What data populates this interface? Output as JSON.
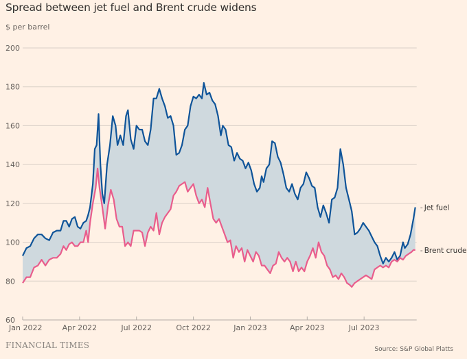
{
  "chart_data": {
    "type": "line",
    "title": "Spread between jet fuel and Brent crude widens",
    "subtitle": "$ per barrel",
    "xlabel": "",
    "ylabel": "$ per barrel",
    "ylim": [
      60,
      200
    ],
    "yticks": [
      60,
      80,
      100,
      120,
      140,
      160,
      180,
      200
    ],
    "xlim_months_from_jan2022": [
      0,
      20.7
    ],
    "xticks": [
      {
        "m": 0,
        "label": "Jan 2022"
      },
      {
        "m": 3,
        "label": "Apr 2022"
      },
      {
        "m": 6,
        "label": "Jul 2022"
      },
      {
        "m": 9,
        "label": "Oct 2022"
      },
      {
        "m": 12,
        "label": "Jan 2023"
      },
      {
        "m": 15,
        "label": "Apr 2023"
      },
      {
        "m": 18,
        "label": "Jul 2023"
      }
    ],
    "grid": true,
    "fill_between_series": true,
    "colors": {
      "jet_fuel": "#0f5499",
      "brent": "#e95d8c",
      "fill": "#cfd9de",
      "grid": "#d9cfc7",
      "axis": "#b3aca6"
    },
    "series": [
      {
        "name": "Jet fuel",
        "key": "jet_fuel",
        "points": [
          [
            0.0,
            93
          ],
          [
            0.2,
            97
          ],
          [
            0.4,
            98
          ],
          [
            0.6,
            102
          ],
          [
            0.8,
            104
          ],
          [
            1.0,
            104
          ],
          [
            1.2,
            102
          ],
          [
            1.4,
            101
          ],
          [
            1.6,
            105
          ],
          [
            1.8,
            106
          ],
          [
            2.0,
            106
          ],
          [
            2.15,
            111
          ],
          [
            2.3,
            111
          ],
          [
            2.45,
            108
          ],
          [
            2.6,
            112
          ],
          [
            2.75,
            113
          ],
          [
            2.9,
            108
          ],
          [
            3.05,
            107
          ],
          [
            3.2,
            110
          ],
          [
            3.35,
            111
          ],
          [
            3.45,
            114
          ],
          [
            3.55,
            118
          ],
          [
            3.7,
            130
          ],
          [
            3.8,
            148
          ],
          [
            3.9,
            150
          ],
          [
            4.0,
            166
          ],
          [
            4.1,
            140
          ],
          [
            4.2,
            125
          ],
          [
            4.3,
            120
          ],
          [
            4.45,
            140
          ],
          [
            4.6,
            150
          ],
          [
            4.75,
            165
          ],
          [
            4.9,
            160
          ],
          [
            5.0,
            150
          ],
          [
            5.15,
            155
          ],
          [
            5.3,
            150
          ],
          [
            5.45,
            165
          ],
          [
            5.55,
            168
          ],
          [
            5.7,
            153
          ],
          [
            5.85,
            148
          ],
          [
            6.0,
            160
          ],
          [
            6.15,
            158
          ],
          [
            6.3,
            158
          ],
          [
            6.45,
            152
          ],
          [
            6.6,
            150
          ],
          [
            6.75,
            158
          ],
          [
            6.9,
            174
          ],
          [
            7.05,
            174
          ],
          [
            7.2,
            179
          ],
          [
            7.35,
            174
          ],
          [
            7.5,
            170
          ],
          [
            7.65,
            164
          ],
          [
            7.8,
            165
          ],
          [
            7.95,
            160
          ],
          [
            8.1,
            145
          ],
          [
            8.25,
            146
          ],
          [
            8.4,
            150
          ],
          [
            8.55,
            158
          ],
          [
            8.7,
            160
          ],
          [
            8.85,
            170
          ],
          [
            9.0,
            175
          ],
          [
            9.15,
            174
          ],
          [
            9.3,
            176
          ],
          [
            9.45,
            174
          ],
          [
            9.55,
            182
          ],
          [
            9.7,
            176
          ],
          [
            9.85,
            177
          ],
          [
            10.0,
            173
          ],
          [
            10.15,
            171
          ],
          [
            10.3,
            165
          ],
          [
            10.45,
            155
          ],
          [
            10.55,
            160
          ],
          [
            10.7,
            158
          ],
          [
            10.85,
            150
          ],
          [
            11.0,
            149
          ],
          [
            11.15,
            142
          ],
          [
            11.3,
            146
          ],
          [
            11.45,
            143
          ],
          [
            11.6,
            142
          ],
          [
            11.75,
            138
          ],
          [
            11.9,
            141
          ],
          [
            12.05,
            137
          ],
          [
            12.2,
            130
          ],
          [
            12.35,
            126
          ],
          [
            12.5,
            128
          ],
          [
            12.6,
            134
          ],
          [
            12.7,
            131
          ],
          [
            12.85,
            138
          ],
          [
            13.0,
            140
          ],
          [
            13.15,
            152
          ],
          [
            13.3,
            151
          ],
          [
            13.45,
            144
          ],
          [
            13.6,
            141
          ],
          [
            13.75,
            135
          ],
          [
            13.9,
            128
          ],
          [
            14.05,
            126
          ],
          [
            14.2,
            130
          ],
          [
            14.35,
            125
          ],
          [
            14.5,
            122
          ],
          [
            14.65,
            128
          ],
          [
            14.8,
            130
          ],
          [
            14.95,
            136
          ],
          [
            15.1,
            133
          ],
          [
            15.25,
            129
          ],
          [
            15.4,
            128
          ],
          [
            15.55,
            118
          ],
          [
            15.7,
            113
          ],
          [
            15.85,
            119
          ],
          [
            16.0,
            115
          ],
          [
            16.15,
            110
          ],
          [
            16.3,
            122
          ],
          [
            16.45,
            123
          ],
          [
            16.6,
            128
          ],
          [
            16.75,
            148
          ],
          [
            16.9,
            140
          ],
          [
            17.05,
            128
          ],
          [
            17.2,
            122
          ],
          [
            17.35,
            116
          ],
          [
            17.5,
            104
          ],
          [
            17.65,
            105
          ],
          [
            17.8,
            107
          ],
          [
            17.95,
            110
          ],
          [
            18.1,
            108
          ],
          [
            18.25,
            106
          ],
          [
            18.4,
            103
          ],
          [
            18.55,
            100
          ],
          [
            18.7,
            98
          ],
          [
            18.85,
            93
          ],
          [
            19.0,
            89
          ],
          [
            19.15,
            92
          ],
          [
            19.3,
            90
          ],
          [
            19.45,
            92
          ],
          [
            19.6,
            95
          ],
          [
            19.75,
            91
          ],
          [
            19.9,
            93
          ],
          [
            20.05,
            100
          ],
          [
            20.15,
            97
          ],
          [
            20.3,
            99
          ],
          [
            20.45,
            104
          ],
          [
            20.6,
            112
          ],
          [
            20.7,
            118
          ]
        ]
      },
      {
        "name": "Brent crude",
        "key": "brent",
        "points": [
          [
            0.0,
            79
          ],
          [
            0.2,
            82
          ],
          [
            0.4,
            82
          ],
          [
            0.6,
            87
          ],
          [
            0.8,
            88
          ],
          [
            1.0,
            91
          ],
          [
            1.2,
            88
          ],
          [
            1.4,
            91
          ],
          [
            1.6,
            92
          ],
          [
            1.8,
            92
          ],
          [
            2.0,
            94
          ],
          [
            2.15,
            98
          ],
          [
            2.3,
            96
          ],
          [
            2.45,
            99
          ],
          [
            2.6,
            100
          ],
          [
            2.75,
            98
          ],
          [
            2.9,
            98
          ],
          [
            3.05,
            100
          ],
          [
            3.2,
            100
          ],
          [
            3.35,
            106
          ],
          [
            3.45,
            100
          ],
          [
            3.55,
            110
          ],
          [
            3.7,
            120
          ],
          [
            3.85,
            128
          ],
          [
            3.95,
            138
          ],
          [
            4.05,
            128
          ],
          [
            4.2,
            118
          ],
          [
            4.35,
            107
          ],
          [
            4.5,
            119
          ],
          [
            4.65,
            127
          ],
          [
            4.8,
            122
          ],
          [
            4.95,
            112
          ],
          [
            5.1,
            108
          ],
          [
            5.25,
            108
          ],
          [
            5.4,
            98
          ],
          [
            5.55,
            100
          ],
          [
            5.7,
            98
          ],
          [
            5.85,
            106
          ],
          [
            6.0,
            106
          ],
          [
            6.15,
            106
          ],
          [
            6.3,
            105
          ],
          [
            6.45,
            98
          ],
          [
            6.6,
            105
          ],
          [
            6.75,
            108
          ],
          [
            6.9,
            106
          ],
          [
            7.05,
            115
          ],
          [
            7.2,
            104
          ],
          [
            7.35,
            110
          ],
          [
            7.5,
            113
          ],
          [
            7.65,
            115
          ],
          [
            7.8,
            117
          ],
          [
            7.95,
            124
          ],
          [
            8.1,
            126
          ],
          [
            8.25,
            129
          ],
          [
            8.4,
            130
          ],
          [
            8.55,
            131
          ],
          [
            8.7,
            126
          ],
          [
            8.85,
            128
          ],
          [
            9.0,
            130
          ],
          [
            9.15,
            124
          ],
          [
            9.3,
            120
          ],
          [
            9.45,
            122
          ],
          [
            9.6,
            118
          ],
          [
            9.75,
            128
          ],
          [
            9.9,
            120
          ],
          [
            10.05,
            112
          ],
          [
            10.2,
            110
          ],
          [
            10.35,
            112
          ],
          [
            10.5,
            108
          ],
          [
            10.65,
            104
          ],
          [
            10.8,
            100
          ],
          [
            10.95,
            101
          ],
          [
            11.1,
            92
          ],
          [
            11.25,
            98
          ],
          [
            11.4,
            95
          ],
          [
            11.55,
            97
          ],
          [
            11.7,
            90
          ],
          [
            11.85,
            96
          ],
          [
            12.0,
            93
          ],
          [
            12.15,
            90
          ],
          [
            12.3,
            95
          ],
          [
            12.45,
            93
          ],
          [
            12.6,
            88
          ],
          [
            12.75,
            88
          ],
          [
            12.9,
            86
          ],
          [
            13.05,
            84
          ],
          [
            13.2,
            88
          ],
          [
            13.35,
            89
          ],
          [
            13.5,
            95
          ],
          [
            13.65,
            92
          ],
          [
            13.8,
            90
          ],
          [
            13.95,
            92
          ],
          [
            14.1,
            90
          ],
          [
            14.25,
            85
          ],
          [
            14.4,
            90
          ],
          [
            14.55,
            85
          ],
          [
            14.7,
            87
          ],
          [
            14.85,
            85
          ],
          [
            15.0,
            90
          ],
          [
            15.15,
            93
          ],
          [
            15.3,
            97
          ],
          [
            15.45,
            92
          ],
          [
            15.6,
            100
          ],
          [
            15.75,
            95
          ],
          [
            15.9,
            93
          ],
          [
            16.05,
            88
          ],
          [
            16.2,
            86
          ],
          [
            16.35,
            82
          ],
          [
            16.5,
            83
          ],
          [
            16.65,
            81
          ],
          [
            16.8,
            84
          ],
          [
            16.95,
            82
          ],
          [
            17.1,
            79
          ],
          [
            17.25,
            78
          ],
          [
            17.35,
            77
          ],
          [
            17.5,
            79
          ],
          [
            17.65,
            80
          ],
          [
            17.8,
            81
          ],
          [
            17.95,
            82
          ],
          [
            18.1,
            83
          ],
          [
            18.25,
            82
          ],
          [
            18.4,
            81
          ],
          [
            18.55,
            86
          ],
          [
            18.7,
            87
          ],
          [
            18.85,
            88
          ],
          [
            19.0,
            87
          ],
          [
            19.15,
            88
          ],
          [
            19.3,
            87
          ],
          [
            19.45,
            90
          ],
          [
            19.6,
            91
          ],
          [
            19.75,
            90
          ],
          [
            19.9,
            92
          ],
          [
            20.05,
            91
          ],
          [
            20.2,
            93
          ],
          [
            20.35,
            94
          ],
          [
            20.5,
            95
          ],
          [
            20.6,
            96
          ],
          [
            20.7,
            96
          ]
        ]
      }
    ],
    "end_labels": [
      "Jet fuel",
      "Brent crude"
    ]
  },
  "header": {
    "title": "Spread between jet fuel and Brent crude widens",
    "subtitle": "$ per barrel"
  },
  "footer": {
    "brand": "FINANCIAL TIMES",
    "source": "Source: S&P Global Platts"
  }
}
